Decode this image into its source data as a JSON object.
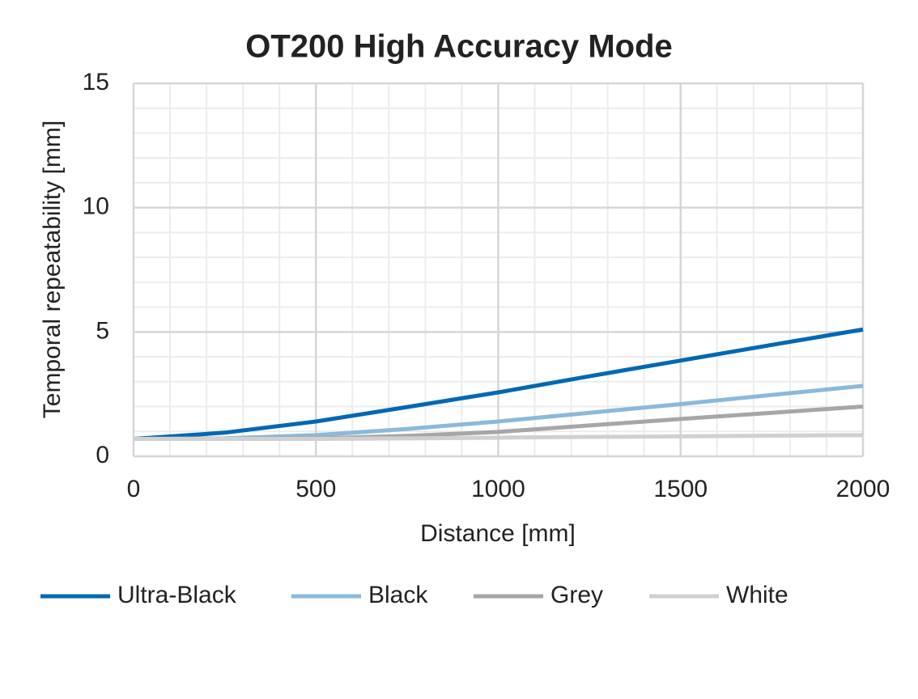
{
  "chart_data": {
    "type": "line",
    "title": "OT200 High Accuracy Mode",
    "x_label": "Distance [mm]",
    "y_label": "Temporal repeatability [mm]",
    "x": [
      0,
      250,
      500,
      750,
      1000,
      1250,
      1500,
      1750,
      2000
    ],
    "series": [
      {
        "name": "Ultra-Black",
        "color": "#0068b4",
        "values": [
          0.7,
          0.95,
          1.4,
          1.98,
          2.57,
          3.22,
          3.85,
          4.48,
          5.1
        ]
      },
      {
        "name": "Black",
        "color": "#8ab9db",
        "values": [
          0.7,
          0.72,
          0.85,
          1.1,
          1.4,
          1.75,
          2.1,
          2.47,
          2.83
        ]
      },
      {
        "name": "Grey",
        "color": "#a6a6a8",
        "values": [
          0.7,
          0.7,
          0.72,
          0.82,
          0.98,
          1.24,
          1.5,
          1.75,
          2.0
        ]
      },
      {
        "name": "White",
        "color": "#d0d0d0",
        "values": [
          0.7,
          0.7,
          0.7,
          0.72,
          0.75,
          0.78,
          0.8,
          0.83,
          0.85
        ]
      }
    ],
    "xlim": [
      0,
      2000
    ],
    "xticks": [
      0,
      500,
      1000,
      1500,
      2000
    ],
    "ylim": [
      0,
      15
    ],
    "yticks": [
      0,
      5,
      10,
      15
    ],
    "xminor": [
      100,
      200,
      300,
      400,
      600,
      700,
      800,
      900,
      1100,
      1200,
      1300,
      1400,
      1600,
      1700,
      1800,
      1900
    ],
    "yminor": [
      1,
      2,
      3,
      4,
      6,
      7,
      8,
      9,
      11,
      12,
      13,
      14
    ],
    "grid": true,
    "legend": "bottom"
  }
}
